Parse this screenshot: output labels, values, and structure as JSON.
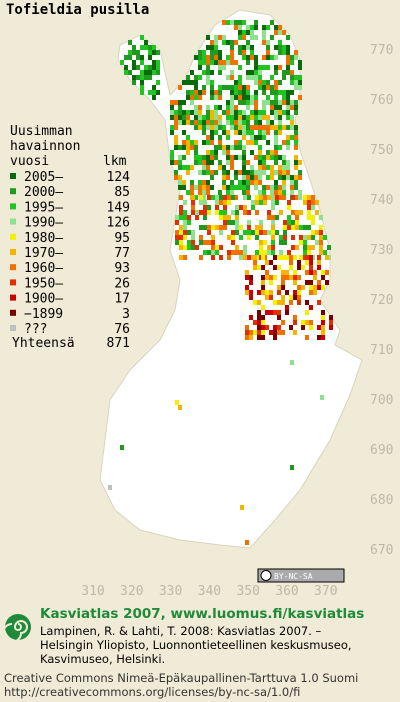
{
  "title": "Tofieldia pusilla",
  "legend": {
    "heading": [
      "Uusimman",
      "havainnon"
    ],
    "year_header": "vuosi",
    "count_header": "lkm",
    "rows": [
      {
        "label": "2005–",
        "count": "124",
        "color": "#0a6a0a"
      },
      {
        "label": "2000–",
        "count": "85",
        "color": "#1f9a1f"
      },
      {
        "label": "1995–",
        "count": "149",
        "color": "#22c422"
      },
      {
        "label": "1990–",
        "count": "126",
        "color": "#8fe08f"
      },
      {
        "label": "1980–",
        "count": "95",
        "color": "#f4f000"
      },
      {
        "label": "1970–",
        "count": "77",
        "color": "#f4b400"
      },
      {
        "label": "1960–",
        "count": "93",
        "color": "#f07000"
      },
      {
        "label": "1950–",
        "count": "26",
        "color": "#e03000"
      },
      {
        "label": "1900–",
        "count": "17",
        "color": "#c80000"
      },
      {
        "label": "−1899",
        "count": "3",
        "color": "#780000"
      },
      {
        "label": "???",
        "count": "76",
        "color": "#c0c0c0"
      }
    ],
    "total_label": "Yhteensä",
    "total": "871"
  },
  "x_grid_labels": [
    310,
    320,
    330,
    340,
    350,
    360,
    370
  ],
  "y_grid_labels": [
    770,
    760,
    750,
    740,
    730,
    720,
    710,
    700,
    690,
    680,
    670
  ],
  "license_badge": "BY-NC-SA",
  "footer": {
    "site": "Kasviatlas 2007, www.luomus.fi/kasviatlas",
    "citation": [
      "Lampinen, R. & Lahti, T. 2008: Kasviatlas 2007. –",
      "Helsingin Yliopisto, Luonnontieteellinen keskusmuseo,",
      "Kasvimuseo, Helsinki."
    ],
    "license": [
      "Creative Commons Nimeä-Epäkaupallinen-Tarttuva 1.0 Suomi",
      "http://creativecommons.org/licenses/by-nc-sa/1.0/fi"
    ]
  }
}
